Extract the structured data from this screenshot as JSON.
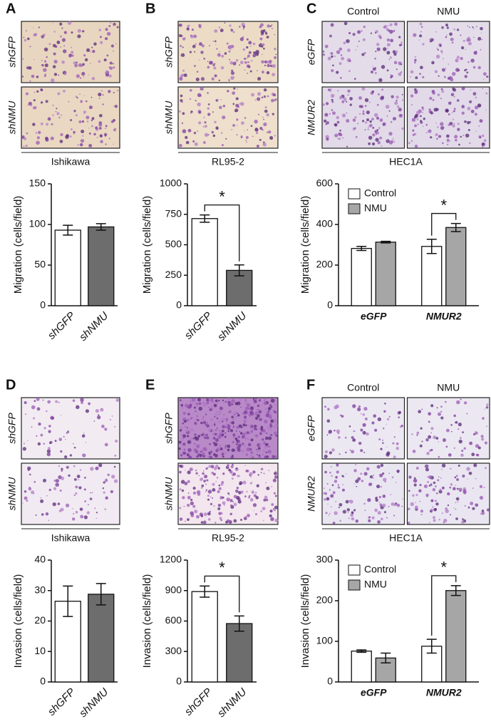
{
  "chart_data": [
    {
      "type": "bar",
      "panel": "A",
      "image_row_labels": [
        "shGFP",
        "shNMU"
      ],
      "cell_line": "Ishikawa",
      "ylabel": "Migration (cells/field)",
      "categories": [
        "shGFP",
        "shNMU"
      ],
      "values": [
        93,
        97
      ],
      "errors": [
        6,
        4
      ],
      "colors": [
        "#ffffff",
        "#6d6d6d"
      ],
      "ylim": [
        0,
        150
      ],
      "yticks": [
        0,
        50,
        100,
        150
      ]
    },
    {
      "type": "bar",
      "panel": "B",
      "image_row_labels": [
        "shGFP",
        "shNMU"
      ],
      "cell_line": "RL95-2",
      "ylabel": "Migration (cells/field)",
      "categories": [
        "shGFP",
        "shNMU"
      ],
      "values": [
        715,
        290
      ],
      "errors": [
        30,
        45
      ],
      "colors": [
        "#ffffff",
        "#6d6d6d"
      ],
      "ylim": [
        0,
        1000
      ],
      "yticks": [
        0,
        250,
        500,
        750,
        1000
      ],
      "annotation": "*"
    },
    {
      "type": "bar",
      "panel": "C",
      "image_column_labels": [
        "Control",
        "NMU"
      ],
      "image_row_labels": [
        "eGFP",
        "NMUR2"
      ],
      "cell_line": "HEC1A",
      "ylabel": "Migration (cells/field)",
      "categories": [
        "eGFP",
        "NMUR2"
      ],
      "series": [
        {
          "name": "Control",
          "color": "#ffffff",
          "values": [
            282,
            292
          ],
          "errors": [
            10,
            35
          ]
        },
        {
          "name": "NMU",
          "color": "#a6a6a6",
          "values": [
            313,
            385
          ],
          "errors": [
            4,
            20
          ]
        }
      ],
      "ylim": [
        0,
        600
      ],
      "yticks": [
        0,
        200,
        400,
        600
      ],
      "annotation": "*"
    },
    {
      "type": "bar",
      "panel": "D",
      "image_row_labels": [
        "shGFP",
        "shNMU"
      ],
      "cell_line": "Ishikawa",
      "ylabel": "Invasion (cells/field)",
      "categories": [
        "shGFP",
        "shNMU"
      ],
      "values": [
        26.5,
        28.8
      ],
      "errors": [
        5,
        3.5
      ],
      "colors": [
        "#ffffff",
        "#6d6d6d"
      ],
      "ylim": [
        0,
        40
      ],
      "yticks": [
        0,
        10,
        20,
        30,
        40
      ]
    },
    {
      "type": "bar",
      "panel": "E",
      "image_row_labels": [
        "shGFP",
        "shNMU"
      ],
      "cell_line": "RL95-2",
      "ylabel": "Invasion (cells/field)",
      "categories": [
        "shGFP",
        "shNMU"
      ],
      "values": [
        890,
        575
      ],
      "errors": [
        55,
        75
      ],
      "colors": [
        "#ffffff",
        "#6d6d6d"
      ],
      "ylim": [
        0,
        1200
      ],
      "yticks": [
        0,
        300,
        600,
        900,
        1200
      ],
      "annotation": "*"
    },
    {
      "type": "bar",
      "panel": "F",
      "image_column_labels": [
        "Control",
        "NMU"
      ],
      "image_row_labels": [
        "eGFP",
        "NMUR2"
      ],
      "cell_line": "HEC1A",
      "ylabel": "Invasion (cells/field)",
      "categories": [
        "eGFP",
        "NMUR2"
      ],
      "series": [
        {
          "name": "Control",
          "color": "#ffffff",
          "values": [
            76,
            88
          ],
          "errors": [
            3,
            17
          ]
        },
        {
          "name": "NMU",
          "color": "#a6a6a6",
          "values": [
            59,
            225
          ],
          "errors": [
            12,
            12
          ]
        }
      ],
      "ylim": [
        0,
        300
      ],
      "yticks": [
        0,
        100,
        200,
        300
      ],
      "annotation": "*"
    }
  ]
}
